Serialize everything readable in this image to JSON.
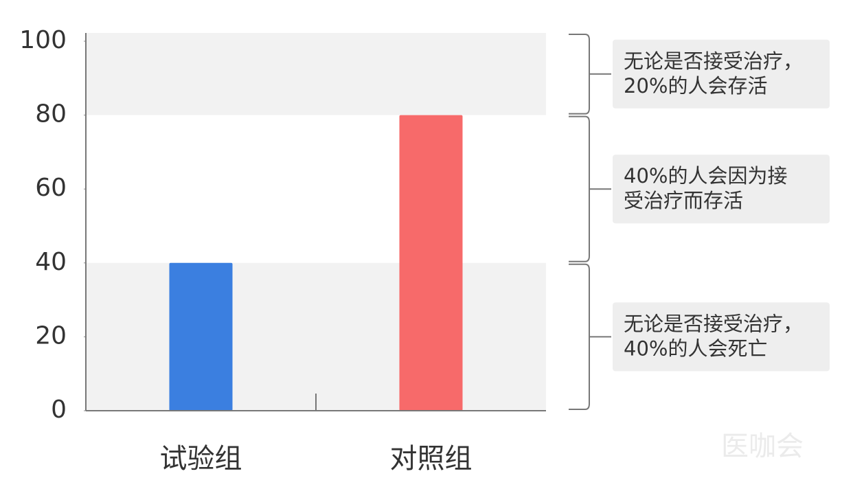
{
  "chart_data": {
    "type": "bar",
    "categories": [
      "试验组",
      "对照组"
    ],
    "values": [
      40,
      80
    ],
    "colors": [
      "#3b7fe0",
      "#f76a6a"
    ],
    "ylim": [
      0,
      100
    ],
    "yticks": [
      0,
      20,
      40,
      60,
      80,
      100
    ],
    "annotations": [
      {
        "range": [
          80,
          100
        ],
        "shaded": true,
        "lines": [
          "无论是否接受治疗，",
          "20%的人会存活"
        ]
      },
      {
        "range": [
          40,
          80
        ],
        "shaded": false,
        "lines": [
          "40%的人会因为接",
          "受治疗而存活"
        ]
      },
      {
        "range": [
          0,
          40
        ],
        "shaded": true,
        "lines": [
          "无论是否接受治疗，",
          "40%的人会死亡"
        ]
      }
    ],
    "watermark": "医咖会"
  }
}
